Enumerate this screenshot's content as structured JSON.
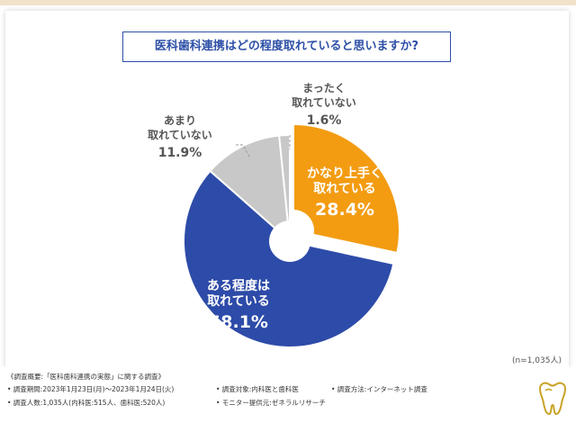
{
  "title": "医科歯科連携はどの程度取れていると思いますか?",
  "sample_note": "(n=1,035人)",
  "colors": {
    "orange": "#f39c12",
    "blue": "#2d4ba8",
    "gray": "#c8c8c8",
    "title": "#2d4fa6"
  },
  "chart_data": {
    "type": "pie",
    "donut": true,
    "categories": [
      "かなり上手く取れている",
      "ある程度は取れている",
      "あまり取れていない",
      "まったく取れていない"
    ],
    "values": [
      28.4,
      58.1,
      11.9,
      1.6
    ],
    "labels": [
      {
        "line1": "かなり上手く",
        "line2": "取れている",
        "pct": "28.4%"
      },
      {
        "line1": "ある程度は",
        "line2": "取れている",
        "pct": "58.1%"
      },
      {
        "line1": "あまり",
        "line2": "取れていない",
        "pct": "11.9%"
      },
      {
        "line1": "まったく",
        "line2": "取れていない",
        "pct": "1.6%"
      }
    ],
    "colors": [
      "#f39c12",
      "#2d4ba8",
      "#c8c8c8",
      "#c8c8c8"
    ]
  },
  "footer": {
    "heading": "《調査概要:「医科歯科連携の実態」に関する調査》",
    "period": "• 調査期間:2023年1月23日(月)〜2023年1月24日(火)",
    "target": "• 調査対象:内科医と歯科医",
    "method": "• 調査方法:インターネット調査",
    "count": "• 調査人数:1,035人(内科医:515人、歯科医:520人)",
    "provider": "• モニター提供元:ゼネラルリサーチ"
  }
}
